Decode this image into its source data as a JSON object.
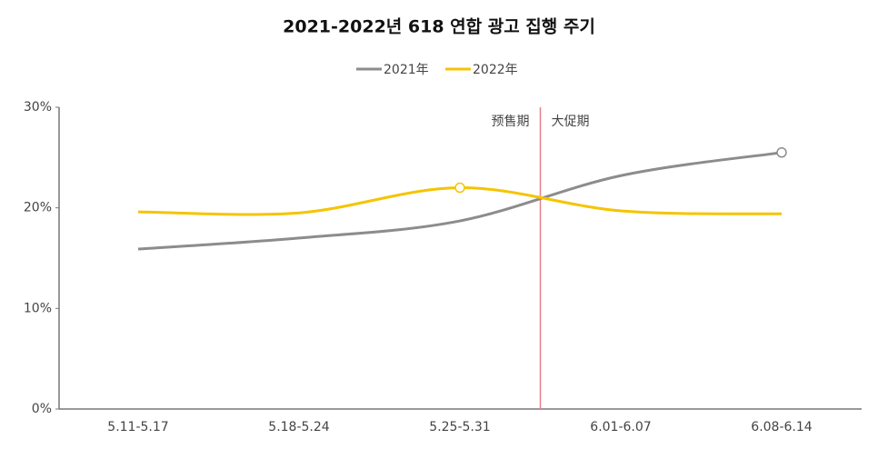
{
  "chart_data": {
    "type": "line",
    "title": "2021-2022년 618 연합 광고 집행 주기",
    "categories": [
      "5.11-5.17",
      "5.18-5.24",
      "5.25-5.31",
      "6.01-6.07",
      "6.08-6.14"
    ],
    "series": [
      {
        "name": "2021年",
        "color": "#8c8c8c",
        "values": [
          15.9,
          17.0,
          18.7,
          23.2,
          25.5
        ],
        "marker_index": 4
      },
      {
        "name": "2022年",
        "color": "#f5c400",
        "values": [
          19.6,
          19.5,
          22.0,
          19.7,
          19.4
        ],
        "marker_index": 2
      }
    ],
    "ylim": [
      0,
      30
    ],
    "yticks": [
      {
        "value": 0,
        "label": "0%"
      },
      {
        "value": 10,
        "label": "10%"
      },
      {
        "value": 20,
        "label": "20%"
      },
      {
        "value": 30,
        "label": "30%"
      }
    ],
    "annotations": [
      "预售期",
      "大促期"
    ],
    "divider_color": "#e8808a",
    "legend": "top",
    "grid": false
  }
}
